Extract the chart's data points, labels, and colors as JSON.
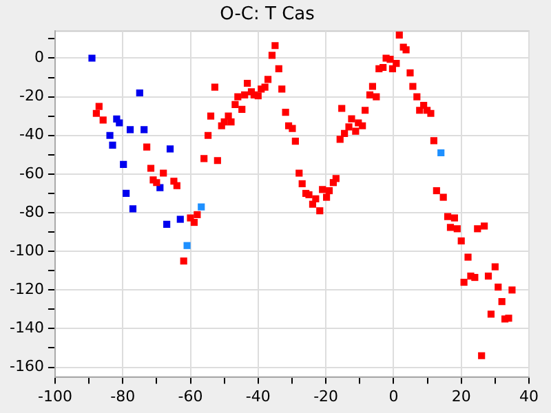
{
  "chart_data": {
    "type": "scatter",
    "title": "O-C: T Cas",
    "xlim": [
      -100,
      40
    ],
    "ylim": [
      -165,
      14
    ],
    "xticks": [
      -100,
      {
        "value": -90,
        "label": null
      },
      -80,
      {
        "value": -70,
        "label": null
      },
      -60,
      {
        "value": -50,
        "label": null
      },
      -40,
      {
        "value": -30,
        "label": null
      },
      -20,
      {
        "value": -10,
        "label": null
      },
      0,
      {
        "value": 10,
        "label": null
      },
      20,
      {
        "value": 30,
        "label": null
      },
      40
    ],
    "yticks": [
      -160,
      {
        "value": -150,
        "label": null
      },
      -140,
      {
        "value": -130,
        "label": null
      },
      -120,
      {
        "value": -110,
        "label": null
      },
      -100,
      {
        "value": -90,
        "label": null
      },
      -80,
      {
        "value": -70,
        "label": null
      },
      -60,
      {
        "value": -50,
        "label": null
      },
      -40,
      {
        "value": -30,
        "label": null
      },
      -20,
      {
        "value": -10,
        "label": null
      },
      0,
      {
        "value": 10,
        "label": null
      }
    ],
    "grid": true,
    "legend": false,
    "marker": "square",
    "series": [
      {
        "color": "#ff0000",
        "x": [
          -87,
          -87.8,
          -85.8,
          -72.9,
          -71.7,
          -68,
          -71,
          -70,
          -64.9,
          -64,
          -60,
          -58,
          -58.9,
          -62,
          -52.8,
          -54,
          -54.8,
          -56,
          -52,
          -50.8,
          -50,
          -48.8,
          -48,
          -46.8,
          -46,
          -44.8,
          -43.2,
          -44,
          -42,
          -41.2,
          -40,
          -39.1,
          -38,
          -37.1,
          -33,
          -33.9,
          -35.9,
          -35,
          -31.9,
          -31,
          -29.9,
          -29,
          -27.9,
          -27,
          -25.9,
          -25,
          -23,
          -23.9,
          -21.8,
          -19.8,
          -21,
          -19,
          -17.8,
          -17,
          -15.8,
          -14.5,
          -15.3,
          -13.2,
          -12.4,
          -11.2,
          -10.4,
          -9.2,
          -8.4,
          -7,
          -6.2,
          -5.1,
          -4.3,
          -3.1,
          -2.2,
          -1,
          -0.3,
          0.8,
          1.7,
          2.9,
          3.7,
          4.9,
          5.7,
          6.9,
          8.9,
          7.7,
          9.9,
          11,
          11.9,
          12.7,
          14.7,
          16,
          18,
          16.8,
          18.8,
          24.8,
          26.8,
          20,
          22,
          22.8,
          24,
          20.8,
          30,
          28,
          30.9,
          35,
          32,
          28.8,
          32.9,
          34,
          26
        ],
        "values": [
          -25,
          -28.6,
          -32,
          -46,
          -57,
          -59.5,
          -63,
          -64.4,
          -63.7,
          -66,
          -82.7,
          -81,
          -85,
          -105,
          -15,
          -30,
          -40,
          -52,
          -53,
          -35,
          -33,
          -30,
          -33,
          -24,
          -20,
          -26.5,
          -13,
          -19,
          -17.4,
          -19,
          -19.5,
          -16,
          -15,
          -11,
          -16,
          -5.5,
          1.5,
          6.5,
          -28,
          -35,
          -36.4,
          -43,
          -59.5,
          -65,
          -70,
          -70.7,
          -72.8,
          -75.6,
          -79,
          -72,
          -68,
          -68.6,
          -64.4,
          -62.3,
          -42,
          -39,
          -26,
          -35.6,
          -31.4,
          -37.8,
          -33.5,
          -35,
          -27,
          -19,
          -14.6,
          -20,
          -5.5,
          -4.8,
          0,
          -0.6,
          -5.5,
          -2.7,
          12,
          5.7,
          4.3,
          -7.6,
          -14.6,
          -20,
          -24.4,
          -27,
          -27,
          -28.6,
          -42.7,
          -68.6,
          -72,
          -82,
          -82.7,
          -87.6,
          -88.3,
          -88.3,
          -86.9,
          -94.6,
          -103,
          -112.8,
          -113.5,
          -116,
          -108,
          -112.8,
          -118.5,
          -120,
          -126,
          -132.5,
          -135,
          -134.6,
          -154
        ]
      },
      {
        "color": "#0000ee",
        "x": [
          -89.1,
          -75,
          -81.8,
          -81,
          -77.8,
          -73.7,
          -83.8,
          -83,
          -66,
          -79.8,
          -69,
          -79,
          -77,
          -67,
          -63
        ],
        "values": [
          0,
          -18,
          -31.5,
          -33.5,
          -37,
          -37,
          -40,
          -45,
          -47,
          -55,
          -67,
          -70,
          -78,
          -86,
          -83.4
        ]
      },
      {
        "color": "#1e90ff",
        "x": [
          -56.8,
          -61,
          14
        ],
        "values": [
          -77,
          -97,
          -49
        ]
      }
    ]
  }
}
